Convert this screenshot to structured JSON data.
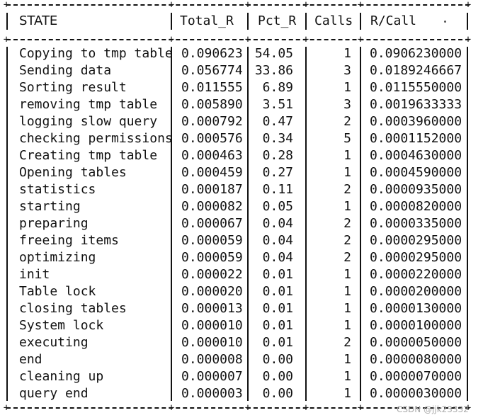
{
  "headers": {
    "state": "STATE",
    "total_r": "Total_R",
    "pct_r": "Pct_R",
    "calls": "Calls",
    "r_call": "R/Call"
  },
  "rows": [
    {
      "state": "Copying to tmp table",
      "total_r": "0.090623",
      "pct_r": "54.05",
      "calls": "1",
      "r_call": "0.0906230000"
    },
    {
      "state": "Sending data",
      "total_r": "0.056774",
      "pct_r": "33.86",
      "calls": "3",
      "r_call": "0.0189246667"
    },
    {
      "state": "Sorting result",
      "total_r": "0.011555",
      "pct_r": "6.89",
      "calls": "1",
      "r_call": "0.0115550000"
    },
    {
      "state": "removing tmp table",
      "total_r": "0.005890",
      "pct_r": "3.51",
      "calls": "3",
      "r_call": "0.0019633333"
    },
    {
      "state": "logging slow query",
      "total_r": "0.000792",
      "pct_r": "0.47",
      "calls": "2",
      "r_call": "0.0003960000"
    },
    {
      "state": "checking permissions",
      "total_r": "0.000576",
      "pct_r": "0.34",
      "calls": "5",
      "r_call": "0.0001152000"
    },
    {
      "state": "Creating tmp table",
      "total_r": "0.000463",
      "pct_r": "0.28",
      "calls": "1",
      "r_call": "0.0004630000"
    },
    {
      "state": "Opening tables",
      "total_r": "0.000459",
      "pct_r": "0.27",
      "calls": "1",
      "r_call": "0.0004590000"
    },
    {
      "state": "statistics",
      "total_r": "0.000187",
      "pct_r": "0.11",
      "calls": "2",
      "r_call": "0.0000935000"
    },
    {
      "state": "starting",
      "total_r": "0.000082",
      "pct_r": "0.05",
      "calls": "1",
      "r_call": "0.0000820000"
    },
    {
      "state": "preparing",
      "total_r": "0.000067",
      "pct_r": "0.04",
      "calls": "2",
      "r_call": "0.0000335000"
    },
    {
      "state": "freeing items",
      "total_r": "0.000059",
      "pct_r": "0.04",
      "calls": "2",
      "r_call": "0.0000295000"
    },
    {
      "state": "optimizing",
      "total_r": "0.000059",
      "pct_r": "0.04",
      "calls": "2",
      "r_call": "0.0000295000"
    },
    {
      "state": "init",
      "total_r": "0.000022",
      "pct_r": "0.01",
      "calls": "1",
      "r_call": "0.0000220000"
    },
    {
      "state": "Table lock",
      "total_r": "0.000020",
      "pct_r": "0.01",
      "calls": "1",
      "r_call": "0.0000200000"
    },
    {
      "state": "closing tables",
      "total_r": "0.000013",
      "pct_r": "0.01",
      "calls": "1",
      "r_call": "0.0000130000"
    },
    {
      "state": "System lock",
      "total_r": "0.000010",
      "pct_r": "0.01",
      "calls": "1",
      "r_call": "0.0000100000"
    },
    {
      "state": "executing",
      "total_r": "0.000010",
      "pct_r": "0.01",
      "calls": "2",
      "r_call": "0.0000050000"
    },
    {
      "state": "end",
      "total_r": "0.000008",
      "pct_r": "0.00",
      "calls": "1",
      "r_call": "0.0000080000"
    },
    {
      "state": "cleaning up",
      "total_r": "0.000007",
      "pct_r": "0.00",
      "calls": "1",
      "r_call": "0.0000070000"
    },
    {
      "state": "query end",
      "total_r": "0.000003",
      "pct_r": "0.00",
      "calls": "1",
      "r_call": "0.0000030000"
    }
  ],
  "watermark": "CSDN @jjk23332"
}
